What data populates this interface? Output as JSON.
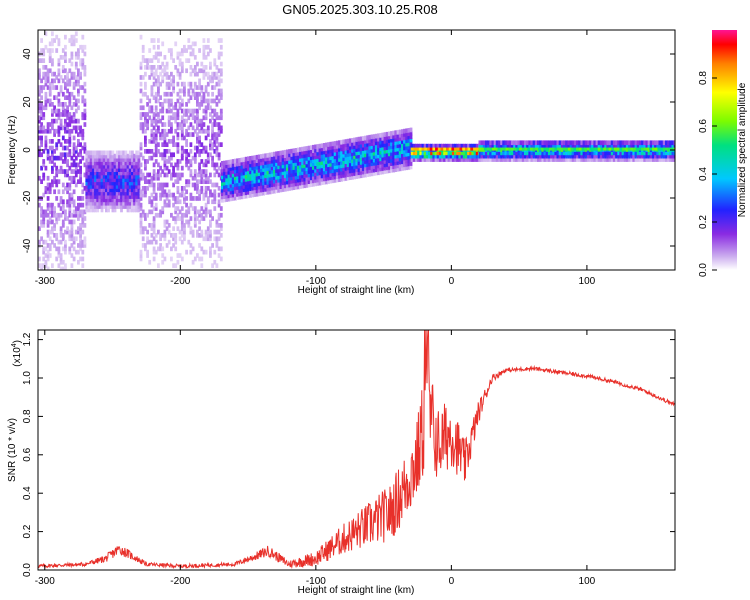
{
  "title": "GN05.2025.303.10.25.R08",
  "chart_data": [
    {
      "type": "heatmap",
      "panel": "spectrogram",
      "xlabel": "Height of straight line (km)",
      "ylabel": "Frequency (Hz)",
      "xlim": [
        -305,
        165
      ],
      "ylim": [
        -50,
        50
      ],
      "xticks": [
        -300,
        -200,
        -100,
        0,
        100
      ],
      "yticks": [
        -40,
        -20,
        0,
        20,
        40
      ],
      "colorbar": {
        "label": "Normalized spectral amplitude",
        "range": [
          0,
          1
        ],
        "ticks": [
          "0.0",
          "0.2",
          "0.4",
          "0.6",
          "0.8"
        ]
      },
      "description_bands": [
        {
          "x_start": -305,
          "x_end": -270,
          "center_freq": 0,
          "spread": 50,
          "amplitude": 0.15
        },
        {
          "x_start": -270,
          "x_end": -230,
          "center_freq": -12,
          "spread": 12,
          "amplitude": 0.25
        },
        {
          "x_start": -230,
          "x_end": -170,
          "center_freq": 0,
          "spread": 50,
          "amplitude": 0.12
        },
        {
          "x_start": -170,
          "x_end": -30,
          "center_freq_start": -12,
          "center_freq_end": 2,
          "spread": 8,
          "amplitude": 0.4
        },
        {
          "x_start": -30,
          "x_end": 20,
          "center_freq": 0,
          "spread": 3,
          "amplitude": 0.7
        },
        {
          "x_start": 20,
          "x_end": 165,
          "center_freq": 1,
          "spread": 4,
          "amplitude": 0.45
        }
      ]
    },
    {
      "type": "line",
      "panel": "snr",
      "xlabel": "Height of straight line (km)",
      "ylabel": "SNR (10 * v/v)",
      "y_multiplier": "(x10",
      "y_multiplier_exp": "4",
      "y_multiplier_close": ")",
      "xlim": [
        -305,
        165
      ],
      "ylim": [
        0,
        1.25
      ],
      "xticks": [
        -300,
        -200,
        -100,
        0,
        100
      ],
      "yticks": [
        "0.0",
        "0.2",
        "0.4",
        "0.6",
        "0.8",
        "1.0",
        "1.2"
      ],
      "series": [
        {
          "name": "SNR",
          "color": "#e8302a",
          "x": [
            -305,
            -270,
            -255,
            -245,
            -235,
            -225,
            -200,
            -160,
            -145,
            -135,
            -120,
            -100,
            -80,
            -60,
            -45,
            -35,
            -25,
            -18,
            -10,
            0,
            10,
            20,
            30,
            40,
            60,
            80,
            100,
            120,
            140,
            165
          ],
          "y": [
            0.02,
            0.03,
            0.06,
            0.11,
            0.07,
            0.03,
            0.02,
            0.03,
            0.07,
            0.1,
            0.03,
            0.06,
            0.16,
            0.24,
            0.3,
            0.42,
            0.58,
            0.85,
            0.65,
            0.72,
            0.55,
            0.82,
            1.0,
            1.04,
            1.05,
            1.03,
            1.01,
            0.98,
            0.94,
            0.86
          ],
          "spread": [
            0.01,
            0.01,
            0.02,
            0.03,
            0.02,
            0.01,
            0.01,
            0.01,
            0.02,
            0.03,
            0.02,
            0.04,
            0.08,
            0.12,
            0.15,
            0.18,
            0.22,
            0.3,
            0.2,
            0.18,
            0.12,
            0.06,
            0.02,
            0.01,
            0.01,
            0.01,
            0.01,
            0.01,
            0.01,
            0.01
          ]
        }
      ]
    }
  ]
}
